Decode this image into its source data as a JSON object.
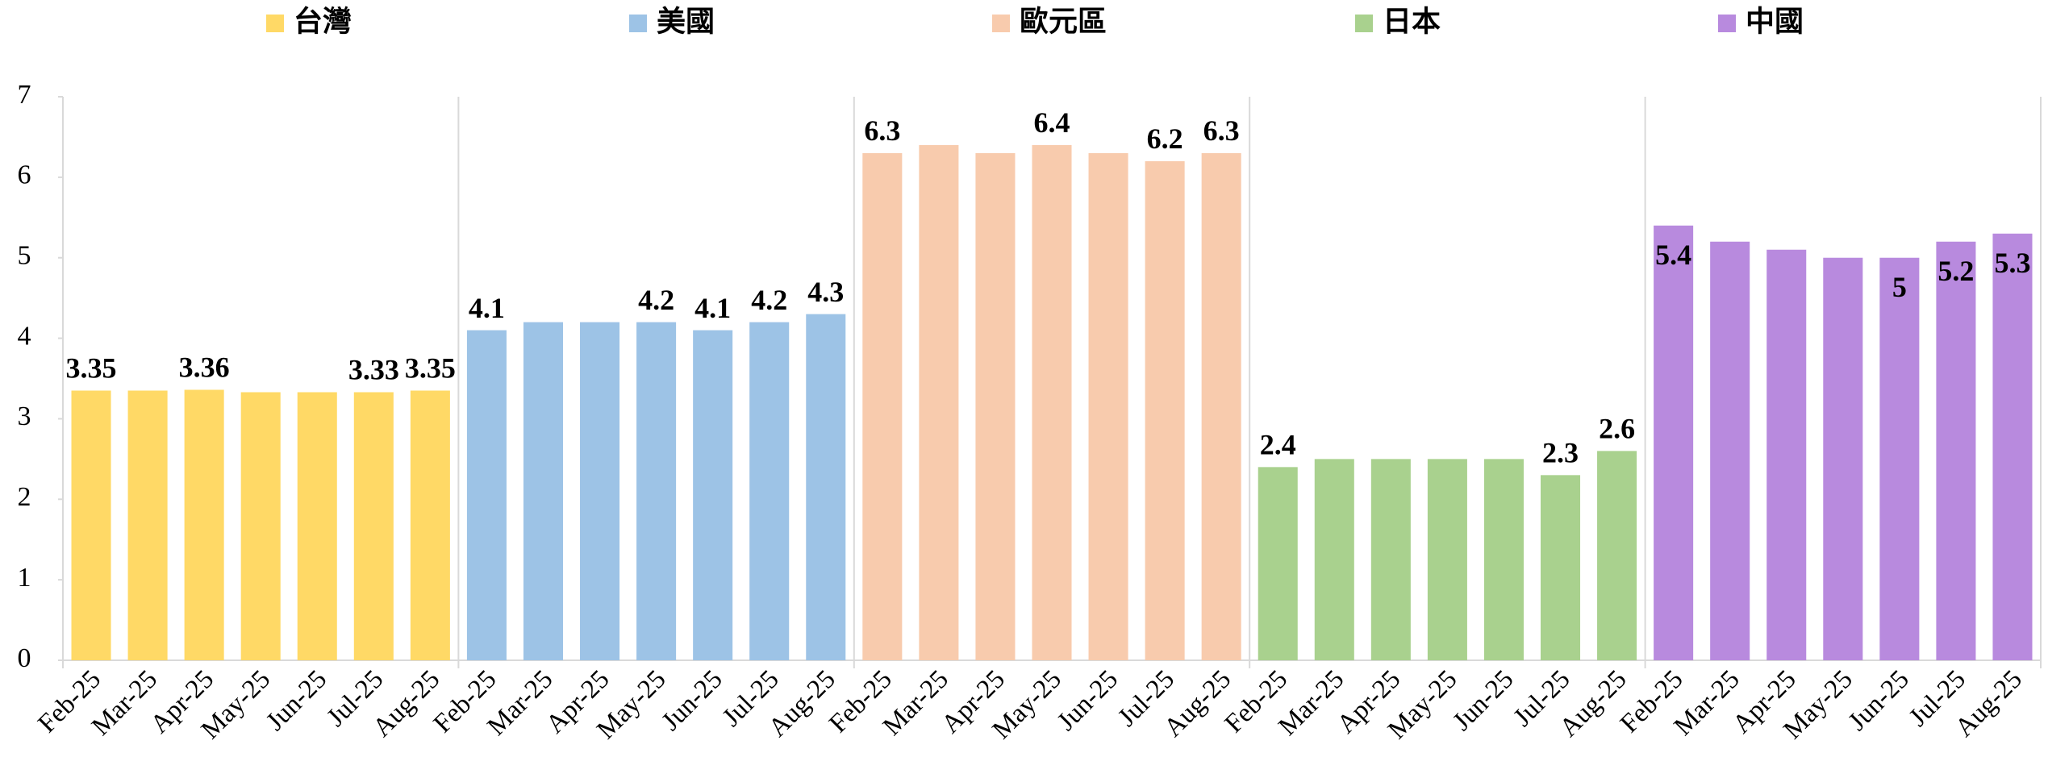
{
  "chart_data": {
    "type": "bar",
    "categories": [
      "Feb-25",
      "Mar-25",
      "Apr-25",
      "May-25",
      "Jun-25",
      "Jul-25",
      "Aug-25"
    ],
    "series": [
      {
        "name": "台灣",
        "color": "#ffd966",
        "values": [
          3.35,
          3.35,
          3.36,
          3.33,
          3.33,
          3.33,
          3.35
        ],
        "value_labels": [
          "3.35",
          null,
          "3.36",
          null,
          null,
          "3.33",
          "3.35"
        ],
        "label_position": "above"
      },
      {
        "name": "美國",
        "color": "#9dc3e6",
        "values": [
          4.1,
          4.2,
          4.2,
          4.2,
          4.1,
          4.2,
          4.3
        ],
        "value_labels": [
          "4.1",
          null,
          null,
          "4.2",
          "4.1",
          "4.2",
          "4.3"
        ],
        "label_position": "above"
      },
      {
        "name": "歐元區",
        "color": "#f8cbad",
        "values": [
          6.3,
          6.4,
          6.3,
          6.4,
          6.3,
          6.2,
          6.3
        ],
        "value_labels": [
          "6.3",
          null,
          null,
          "6.4",
          null,
          "6.2",
          "6.3"
        ],
        "label_position": "above"
      },
      {
        "name": "日本",
        "color": "#a9d18e",
        "values": [
          2.4,
          2.5,
          2.5,
          2.5,
          2.5,
          2.3,
          2.6
        ],
        "value_labels": [
          "2.4",
          null,
          null,
          null,
          null,
          "2.3",
          "2.6"
        ],
        "label_position": "above"
      },
      {
        "name": "中國",
        "color": "#b88ade",
        "values": [
          5.4,
          5.2,
          5.1,
          5.0,
          5.0,
          5.2,
          5.3
        ],
        "value_labels": [
          "5.4",
          null,
          null,
          null,
          "5",
          "5.2",
          "5.3"
        ],
        "label_position": "inside"
      }
    ],
    "ylim": [
      0,
      7
    ],
    "yticks": [
      0,
      1,
      2,
      3,
      4,
      5,
      6,
      7
    ],
    "legend": "top"
  }
}
